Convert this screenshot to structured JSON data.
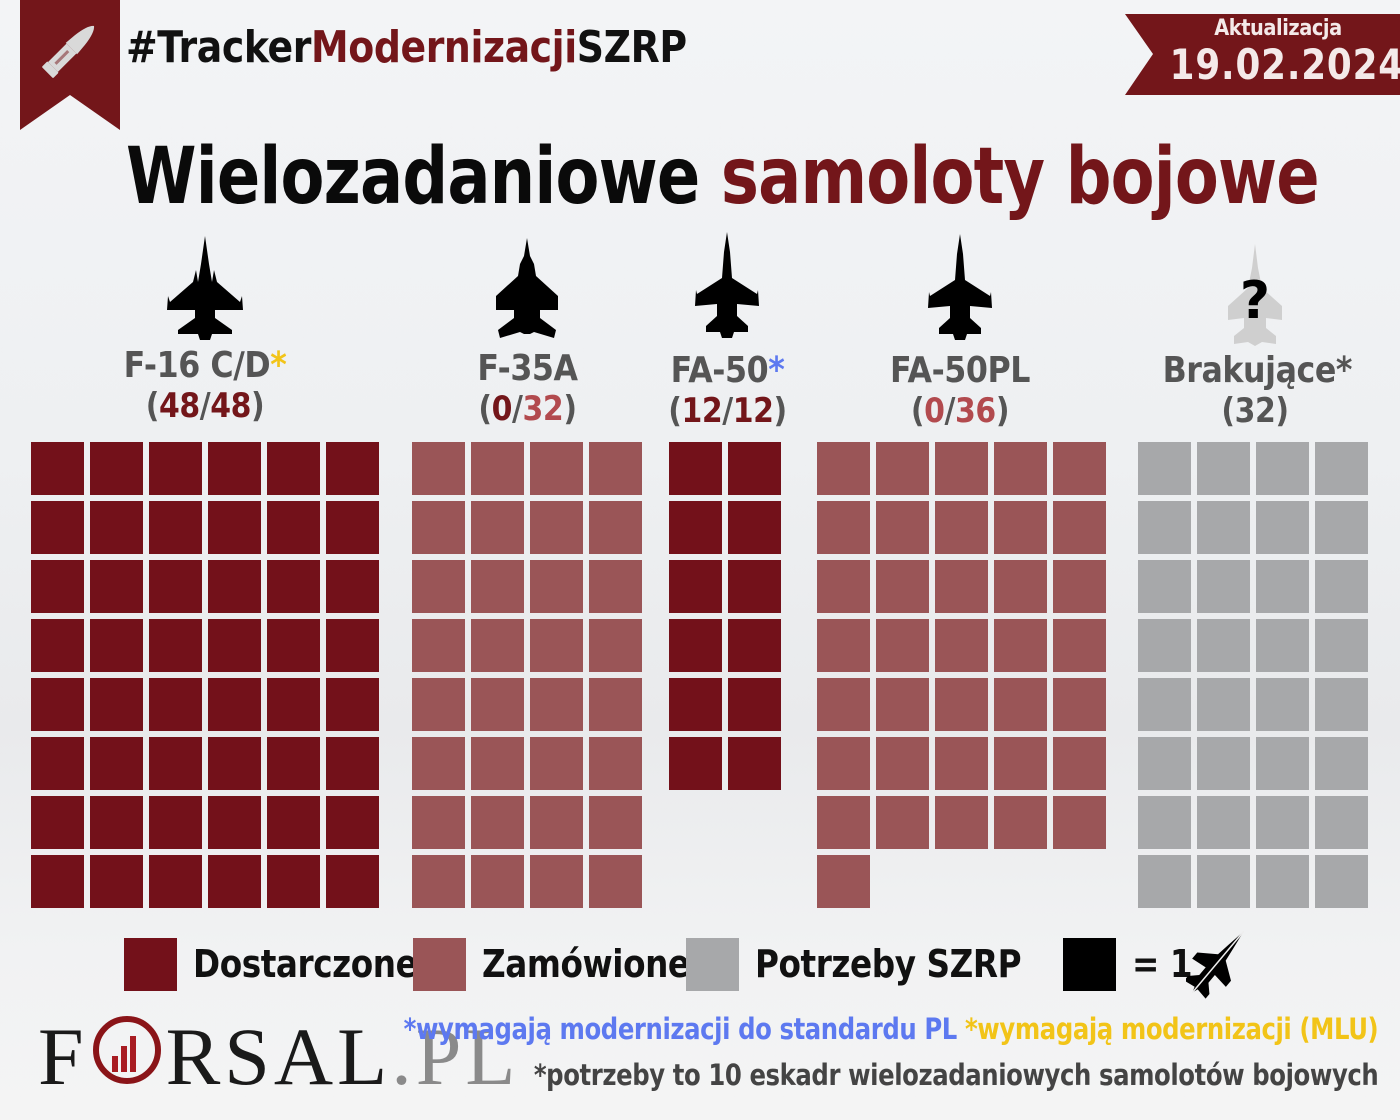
{
  "header": {
    "hashtag_prefix": "#Tracker",
    "hashtag_middle": "Modernizacji",
    "hashtag_suffix": "SZRP",
    "update_label": "Aktualizacja",
    "update_date": "19.02.2024",
    "ribbon_icon": "bullet-icon"
  },
  "title": {
    "part1": "Wielozadaniowe",
    "part2": "samoloty bojowe"
  },
  "colors": {
    "delivered": "#73111a",
    "ordered": "#9a5557",
    "needs": "#a7a8aa",
    "accent": "#73161a",
    "asterisk_yellow": "#f2c418",
    "asterisk_blue": "#5d79f0"
  },
  "columns": [
    {
      "name": "F-16 C/D",
      "asterisk": "*",
      "asterisk_color": "yellow",
      "delivered": "48",
      "total": "48",
      "icon": "f16-jet-icon"
    },
    {
      "name": "F-35A",
      "asterisk": "",
      "delivered": "0",
      "total": "32",
      "icon": "f35-jet-icon"
    },
    {
      "name": "FA-50",
      "asterisk": "*",
      "asterisk_color": "blue",
      "delivered": "12",
      "total": "12",
      "icon": "fa50-jet-icon"
    },
    {
      "name": "FA-50PL",
      "asterisk": "",
      "delivered": "0",
      "total": "36",
      "icon": "fa50pl-jet-icon"
    },
    {
      "name": "Brakujące*",
      "count": "32",
      "icon": "unknown-jet-icon",
      "question": "?"
    }
  ],
  "legend": {
    "delivered": "Dostarczone",
    "ordered": "Zamówione",
    "needs": "Potrzeby SZRP",
    "unit": "= 1"
  },
  "footer": {
    "logo_f": "F",
    "logo_rest": "RSAL",
    "logo_pl": ".PL",
    "note_blue": "*wymagają modernizacji do standardu PL",
    "note_yellow": "*wymagają modernizacji (MLU)",
    "note_gray": "*potrzeby to 10 eskadr wielozadaniowych samolotów bojowych"
  },
  "chart_data": {
    "type": "waffle",
    "title": "Wielozadaniowe samoloty bojowe",
    "unit": "1 square = 1 aircraft",
    "categories": [
      "F-16 C/D",
      "F-35A",
      "FA-50",
      "FA-50PL",
      "Brakujące"
    ],
    "series": [
      {
        "name": "Dostarczone",
        "color": "#73111a",
        "values": [
          48,
          0,
          12,
          0,
          0
        ]
      },
      {
        "name": "Zamówione",
        "color": "#9a5557",
        "values": [
          0,
          32,
          0,
          36,
          0
        ]
      },
      {
        "name": "Potrzeby SZRP",
        "color": "#a7a8aa",
        "values": [
          0,
          0,
          0,
          0,
          32
        ]
      }
    ],
    "labels": [
      "(48/48)",
      "(0/32)",
      "(12/12)",
      "(0/36)",
      "(32)"
    ],
    "grid_columns": [
      6,
      4,
      2,
      5,
      4
    ],
    "legend_position": "bottom",
    "date": "19.02.2024"
  }
}
